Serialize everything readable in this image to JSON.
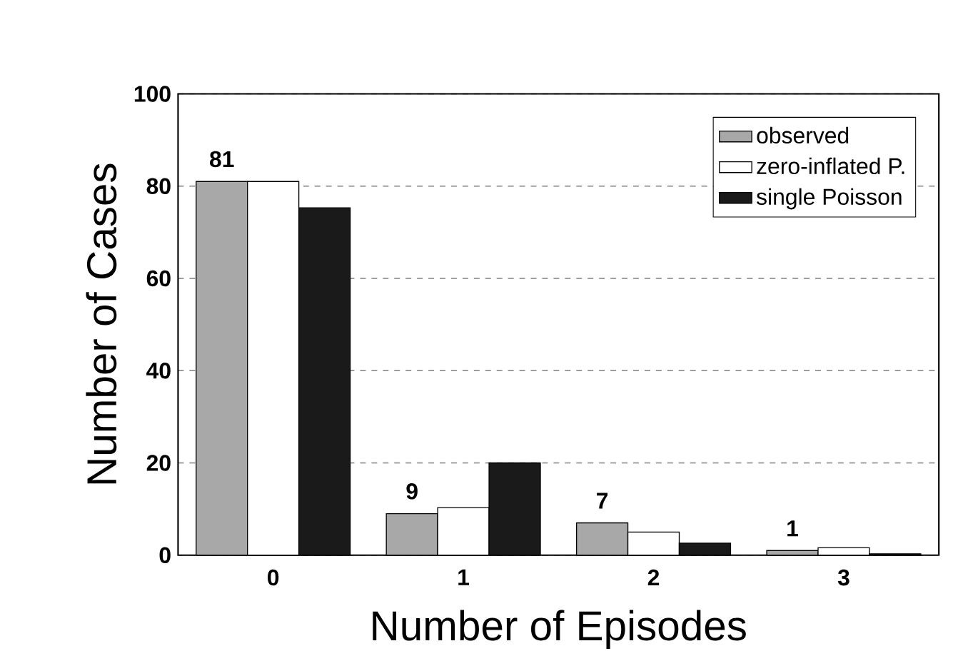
{
  "chart_data": {
    "type": "bar",
    "xlabel": "Number of Episodes",
    "ylabel": "Number of Cases",
    "categories": [
      "0",
      "1",
      "2",
      "3"
    ],
    "series": [
      {
        "name": "observed",
        "color": "#a8a8a8",
        "values": [
          81,
          9,
          7,
          1
        ],
        "value_labels": [
          "81",
          "9",
          "7",
          "1"
        ]
      },
      {
        "name": "zero-inflated P.",
        "color": "#ffffff",
        "values": [
          81,
          10.3,
          5,
          1.6
        ]
      },
      {
        "name": "single Poisson",
        "color": "#1a1a1a",
        "values": [
          75.3,
          20,
          2.6,
          0.3
        ]
      }
    ],
    "ylim": [
      0,
      100
    ],
    "yticks": [
      0,
      20,
      40,
      60,
      80,
      100
    ],
    "grid": "y",
    "legend": "top right"
  }
}
